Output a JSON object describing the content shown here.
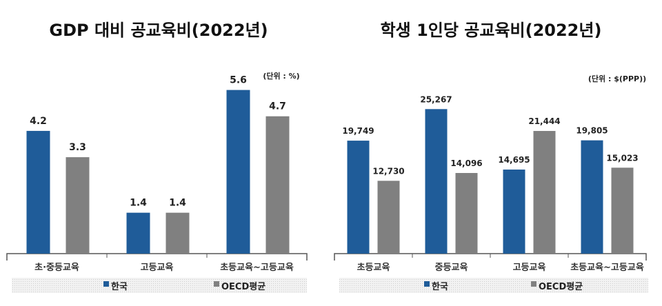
{
  "chart_data": [
    {
      "type": "bar",
      "title": "GDP 대비 공교육비(2022년)",
      "unit": "(단위 : %)",
      "categories": [
        "초·중등교육",
        "고등교육",
        "초등교육~고등교육"
      ],
      "series": [
        {
          "name": "한국",
          "color": "#1F5C99",
          "values": [
            4.2,
            1.4,
            5.6
          ],
          "labels": [
            "4.2",
            "1.4",
            "5.6"
          ]
        },
        {
          "name": "OECD평균",
          "color": "#808080",
          "values": [
            3.3,
            1.4,
            4.7
          ],
          "labels": [
            "3.3",
            "1.4",
            "4.7"
          ]
        }
      ],
      "ylim": [
        0,
        6
      ],
      "grid": false,
      "legend": "bottom"
    },
    {
      "type": "bar",
      "title": "학생 1인당 공교육비(2022년)",
      "unit": "(단위 : $(PPP))",
      "categories": [
        "초등교육",
        "중등교육",
        "고등교육",
        "초등교육~고등교육"
      ],
      "series": [
        {
          "name": "한국",
          "color": "#1F5C99",
          "values": [
            19749,
            25267,
            14695,
            19805
          ],
          "labels": [
            "19,749",
            "25,267",
            "14,695",
            "19,805"
          ]
        },
        {
          "name": "OECD평균",
          "color": "#808080",
          "values": [
            12730,
            14096,
            21444,
            15023
          ],
          "labels": [
            "12,730",
            "14,096",
            "21,444",
            "15,023"
          ]
        }
      ],
      "ylim": [
        0,
        30000
      ],
      "grid": false,
      "legend": "bottom"
    }
  ]
}
